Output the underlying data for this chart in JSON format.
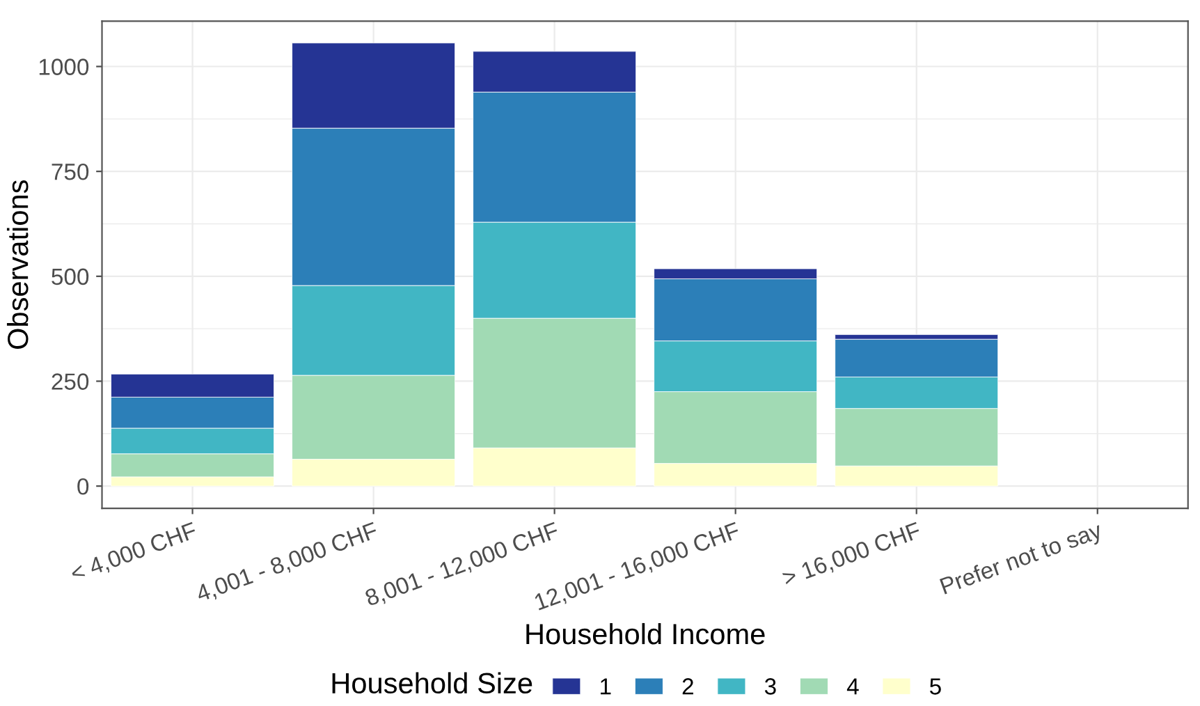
{
  "chart_data": {
    "type": "bar",
    "stacked": true,
    "xlabel": "Household Income",
    "ylabel": "Observations",
    "legend_title": "Household Size",
    "legend": "bottom",
    "grid": true,
    "categories": [
      "< 4,000 CHF",
      "4,001 - 8,000 CHF",
      "8,001 - 12,000 CHF",
      "12,001 - 16,000 CHF",
      "> 16,000 CHF",
      "Prefer not to say"
    ],
    "ylim": [
      -53,
      1108
    ],
    "yticks": [
      0,
      250,
      500,
      750,
      1000
    ],
    "series": [
      {
        "name": "5",
        "color": "#ffffcc",
        "values": [
          22,
          64,
          91,
          54,
          48,
          null
        ]
      },
      {
        "name": "4",
        "color": "#a1dab4",
        "values": [
          55,
          200,
          309,
          171,
          137,
          null
        ]
      },
      {
        "name": "3",
        "color": "#41b6c4",
        "values": [
          61,
          214,
          229,
          121,
          75,
          null
        ]
      },
      {
        "name": "2",
        "color": "#2c7fb8",
        "values": [
          74,
          375,
          310,
          148,
          90,
          null
        ]
      },
      {
        "name": "1",
        "color": "#253494",
        "values": [
          55,
          203,
          97,
          24,
          11,
          null
        ]
      }
    ]
  }
}
